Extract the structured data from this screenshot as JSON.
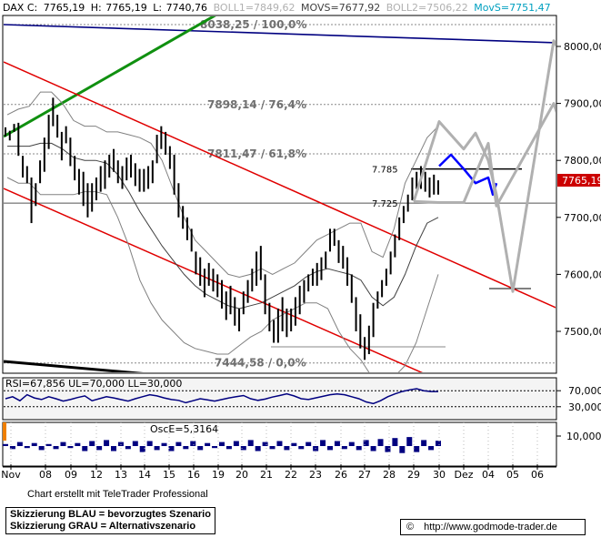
{
  "header": {
    "symbol": "DAX C:",
    "close": "7765,19",
    "high_label": "H:",
    "high": "7765,19",
    "low_label": "L:",
    "low": "7740,76",
    "boll1": "BOLL1=7849,62",
    "movs": "MOVS=7677,92",
    "boll2": "BOLL2=7506,22",
    "movs_s": "MovS=7751,47"
  },
  "colors": {
    "price": "#000000",
    "boll": "#808080",
    "channel": "#e00000",
    "trend_green": "#109010",
    "trend_navy": "#000080",
    "scenario_blue": "#0000ff",
    "scenario_gray": "#b0b0b0",
    "last_price_box": "#cc0000",
    "movs_text": "#00a0c0",
    "rsi_panel_bg": "#f0f0f0",
    "rsi_line": "#000080",
    "osc_line": "#000080",
    "orange_marker": "#f08000"
  },
  "chart_data": [
    {
      "type": "line",
      "title": "DAX",
      "ylim": [
        7420,
        8060
      ],
      "y_ticks": [
        {
          "value": 8000,
          "label": "8000,00"
        },
        {
          "value": 7900,
          "label": "7900,00"
        },
        {
          "value": 7800,
          "label": "7800,00"
        },
        {
          "value": 7700,
          "label": "7700,00"
        },
        {
          "value": 7600,
          "label": "7600,00"
        },
        {
          "value": 7500,
          "label": "7500,00"
        }
      ],
      "x_tick_labels": [
        "Nov",
        "08",
        "09",
        "12",
        "13",
        "14",
        "15",
        "16",
        "19",
        "20",
        "21",
        "22",
        "23",
        "26",
        "27",
        "28",
        "29",
        "30",
        "Dez",
        "04",
        "05",
        "06"
      ],
      "last_price": {
        "value": 7765.19,
        "label": "7765,19"
      },
      "fib_levels": [
        {
          "value": 8038.25,
          "label": "8038,25 / 100,0%"
        },
        {
          "value": 7898.14,
          "label": "7898,14 / 76,4%"
        },
        {
          "value": 7811.47,
          "label": "7811,47 / 61,8%"
        },
        {
          "value": 7444.58,
          "label": "7444,58 / 0,0%"
        }
      ],
      "key_levels": [
        {
          "value": 7785,
          "label": "7.785"
        },
        {
          "value": 7725,
          "label": "7.725"
        }
      ],
      "series": [
        {
          "name": "DAX",
          "points": [
            [
              7842,
              7858
            ],
            [
              7835,
              7852
            ],
            [
              7850,
              7864
            ],
            [
              7808,
              7866
            ],
            [
              7770,
              7808
            ],
            [
              7760,
              7790
            ],
            [
              7690,
              7770
            ],
            [
              7720,
              7760
            ],
            [
              7760,
              7800
            ],
            [
              7780,
              7840
            ],
            [
              7820,
              7880
            ],
            [
              7860,
              7910
            ],
            [
              7840,
              7880
            ],
            [
              7800,
              7850
            ],
            [
              7830,
              7860
            ],
            [
              7790,
              7840
            ],
            [
              7765,
              7808
            ],
            [
              7740,
              7785
            ],
            [
              7720,
              7780
            ],
            [
              7700,
              7760
            ],
            [
              7710,
              7760
            ],
            [
              7730,
              7770
            ],
            [
              7745,
              7790
            ],
            [
              7750,
              7800
            ],
            [
              7770,
              7810
            ],
            [
              7780,
              7820
            ],
            [
              7760,
              7800
            ],
            [
              7750,
              7790
            ],
            [
              7765,
              7805
            ],
            [
              7770,
              7810
            ],
            [
              7755,
              7795
            ],
            [
              7745,
              7785
            ],
            [
              7745,
              7785
            ],
            [
              7750,
              7790
            ],
            [
              7760,
              7800
            ],
            [
              7795,
              7845
            ],
            [
              7820,
              7860
            ],
            [
              7810,
              7850
            ],
            [
              7785,
              7825
            ],
            [
              7740,
              7810
            ],
            [
              7700,
              7760
            ],
            [
              7680,
              7720
            ],
            [
              7660,
              7700
            ],
            [
              7640,
              7680
            ],
            [
              7600,
              7640
            ],
            [
              7580,
              7630
            ],
            [
              7560,
              7610
            ],
            [
              7580,
              7620
            ],
            [
              7570,
              7610
            ],
            [
              7560,
              7600
            ],
            [
              7540,
              7590
            ],
            [
              7520,
              7570
            ],
            [
              7530,
              7580
            ],
            [
              7510,
              7560
            ],
            [
              7500,
              7540
            ],
            [
              7530,
              7570
            ],
            [
              7550,
              7590
            ],
            [
              7570,
              7610
            ],
            [
              7580,
              7640
            ],
            [
              7590,
              7650
            ],
            [
              7530,
              7600
            ],
            [
              7500,
              7550
            ],
            [
              7480,
              7520
            ],
            [
              7480,
              7540
            ],
            [
              7500,
              7560
            ],
            [
              7490,
              7540
            ],
            [
              7500,
              7540
            ],
            [
              7510,
              7560
            ],
            [
              7530,
              7580
            ],
            [
              7550,
              7590
            ],
            [
              7570,
              7600
            ],
            [
              7580,
              7610
            ],
            [
              7580,
              7620
            ],
            [
              7590,
              7630
            ],
            [
              7610,
              7640
            ],
            [
              7640,
              7680
            ],
            [
              7650,
              7680
            ],
            [
              7620,
              7660
            ],
            [
              7610,
              7650
            ],
            [
              7580,
              7630
            ],
            [
              7550,
              7600
            ],
            [
              7500,
              7560
            ],
            [
              7470,
              7530
            ],
            [
              7450,
              7490
            ],
            [
              7460,
              7510
            ],
            [
              7490,
              7550
            ],
            [
              7540,
              7570
            ],
            [
              7560,
              7590
            ],
            [
              7580,
              7610
            ],
            [
              7600,
              7640
            ],
            [
              7630,
              7670
            ],
            [
              7660,
              7700
            ],
            [
              7690,
              7720
            ],
            [
              7710,
              7740
            ],
            [
              7730,
              7770
            ],
            [
              7750,
              7780
            ],
            [
              7750,
              7790
            ],
            [
              7745,
              7780
            ],
            [
              7735,
              7770
            ],
            [
              7740,
              7775
            ],
            [
              7740,
              7765
            ]
          ]
        },
        {
          "name": "BOLL1",
          "y": [
            7880,
            7890,
            7895,
            7920,
            7920,
            7900,
            7870,
            7860,
            7860,
            7850,
            7850,
            7845,
            7840,
            7830,
            7800,
            7750,
            7700,
            7660,
            7640,
            7620,
            7600,
            7595,
            7600,
            7610,
            7600,
            7610,
            7620,
            7640,
            7660,
            7670,
            7680,
            7690,
            7690,
            7640,
            7630,
            7680,
            7760,
            7800,
            7840,
            7860
          ]
        },
        {
          "name": "BOLL2",
          "y": [
            7770,
            7760,
            7760,
            7740,
            7740,
            7740,
            7740,
            7745,
            7745,
            7740,
            7700,
            7650,
            7590,
            7550,
            7520,
            7500,
            7480,
            7470,
            7465,
            7460,
            7460,
            7475,
            7490,
            7500,
            7520,
            7530,
            7540,
            7550,
            7550,
            7540,
            7500,
            7470,
            7450,
            7420,
            7410,
            7420,
            7440,
            7480,
            7540,
            7600
          ]
        },
        {
          "name": "MOVS",
          "y": [
            7825,
            7825,
            7825,
            7830,
            7830,
            7820,
            7805,
            7800,
            7800,
            7795,
            7775,
            7745,
            7710,
            7680,
            7650,
            7625,
            7600,
            7580,
            7565,
            7555,
            7545,
            7540,
            7545,
            7550,
            7560,
            7570,
            7580,
            7595,
            7605,
            7610,
            7605,
            7600,
            7590,
            7560,
            7545,
            7560,
            7600,
            7650,
            7690,
            7700
          ]
        },
        {
          "name": "Skizzierung BLAU",
          "points": [
            [
              "30",
              7790
            ],
            [
              "30.5",
              7810
            ],
            [
              "01",
              7785
            ],
            [
              "02",
              7760
            ],
            [
              "03",
              7770
            ],
            [
              "03.5",
              7740
            ],
            [
              "04",
              7760
            ]
          ]
        },
        {
          "name": "Skizzierung GRAU",
          "points": [
            [
              "29",
              7728
            ],
            [
              "30",
              7868
            ],
            [
              "01",
              7820
            ],
            [
              "02",
              7848
            ],
            [
              "03",
              7800
            ],
            [
              "04",
              7740
            ],
            [
              "05",
              7570
            ],
            [
              "06",
              8010
            ],
            [
              "06.5",
              7960
            ]
          ]
        },
        {
          "name": "Skizzierung GRAU 2",
          "points": [
            [
              "29",
              7728
            ],
            [
              "30",
              7726
            ],
            [
              "01",
              7726
            ],
            [
              "03",
              7830
            ],
            [
              "04",
              7720
            ],
            [
              "06",
              7900
            ],
            [
              "06.5",
              7820
            ]
          ]
        }
      ]
    },
    {
      "type": "line",
      "title": "RSI=67,856 UL=70,000 LL=30,000",
      "ylim": [
        0,
        100
      ],
      "y_ticks": [
        {
          "value": 70,
          "label": "70,000"
        },
        {
          "value": 30,
          "label": "30,000"
        }
      ],
      "series": [
        {
          "name": "RSI",
          "y": [
            50,
            55,
            45,
            60,
            52,
            48,
            55,
            50,
            44,
            48,
            53,
            57,
            45,
            50,
            55,
            52,
            48,
            44,
            50,
            55,
            60,
            57,
            52,
            48,
            46,
            40,
            45,
            50,
            47,
            44,
            48,
            52,
            55,
            58,
            50,
            46,
            49,
            54,
            58,
            62,
            57,
            50,
            48,
            52,
            56,
            60,
            62,
            60,
            55,
            50,
            42,
            38,
            45,
            55,
            62,
            68,
            72,
            75,
            70,
            68,
            67.856
          ]
        }
      ]
    },
    {
      "type": "area",
      "title": "OscE=5,3164",
      "ylim": [
        -20,
        20
      ],
      "y_ticks": [
        {
          "value": 10,
          "label": "10,0000"
        }
      ],
      "series": [
        {
          "name": "OscE",
          "y": [
            2,
            -3,
            4,
            -2,
            3,
            -4,
            2,
            -3,
            4,
            -2,
            3,
            -5,
            5,
            -4,
            6,
            -5,
            4,
            -3,
            5,
            -6,
            5,
            -4,
            3,
            -5,
            4,
            -3,
            5,
            -4,
            3,
            -2,
            4,
            -3,
            5,
            -4,
            6,
            -5,
            4,
            -3,
            5,
            -4,
            3,
            -3,
            4,
            -5,
            6,
            -4,
            5,
            -3,
            4,
            -4,
            6,
            -5,
            7,
            -6,
            8,
            -7,
            9,
            -6,
            6,
            -4,
            5.3164
          ]
        }
      ]
    }
  ],
  "footer": {
    "credit": "Chart erstellt mit TeleTrader Professional",
    "legend_blue": "Skizzierung BLAU = bevorzugtes Szenario",
    "legend_gray": "Skizzierung GRAU = Alternativszenario",
    "copyright": "©",
    "url": "http://www.godmode-trader.de"
  }
}
